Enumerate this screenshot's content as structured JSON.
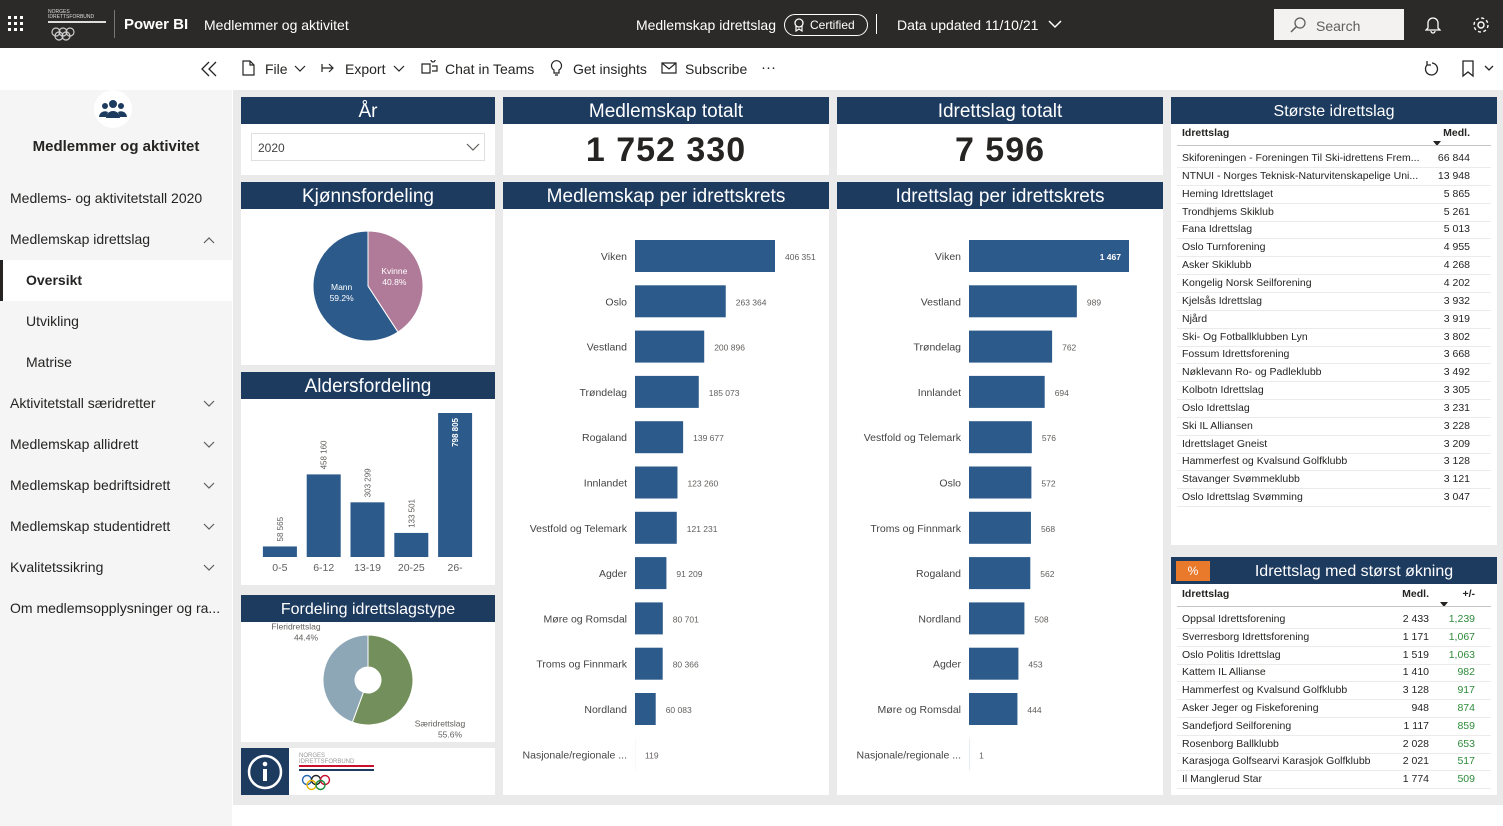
{
  "header": {
    "logo": "NORGES IDRETTSFORBUND",
    "app": "Power BI",
    "report": "Medlemmer og aktivitet",
    "dataset": "Medlemskap idrettslag",
    "badge": "Certified",
    "updated": "Data updated 11/10/21",
    "search": "Search"
  },
  "toolbar": {
    "items": [
      "File",
      "Export",
      "Chat in Teams",
      "Get insights",
      "Subscribe"
    ],
    "more": "···"
  },
  "nav": {
    "title": "Medlemmer og aktivitet",
    "sections": [
      {
        "label": "Medlems- og aktivitetstall 2020"
      },
      {
        "label": "Medlemskap idrettslag",
        "expanded": true,
        "pages": [
          "Oversikt",
          "Utvikling",
          "Matrise"
        ],
        "active": 0
      },
      {
        "label": "Aktivitetstall særidretter",
        "expanded": false
      },
      {
        "label": "Medlemskap allidrett",
        "expanded": false
      },
      {
        "label": "Medlemskap bedriftsidrett",
        "expanded": false
      },
      {
        "label": "Medlemskap studentidrett",
        "expanded": false
      },
      {
        "label": "Kvalitetssikring",
        "expanded": false
      },
      {
        "label": "Om medlemsopplysninger og ra..."
      }
    ]
  },
  "year_slicer": {
    "title": "År",
    "selected": "2020"
  },
  "kpis": [
    {
      "title": "Medlemskap totalt",
      "value": "1 752 330"
    },
    {
      "title": "Idrettslag totalt",
      "value": "7 596"
    }
  ],
  "chart_data": [
    {
      "type": "pie",
      "title": "Kjønnsfordeling",
      "categories": [
        "Mann",
        "Kvinne"
      ],
      "values": [
        59.2,
        40.8
      ],
      "value_labels": [
        "59.2%",
        "40.8%"
      ],
      "colors": [
        "#2c5a8a",
        "#b07b99"
      ]
    },
    {
      "type": "bar",
      "title": "Aldersfordeling",
      "categories": [
        "0-5",
        "6-12",
        "13-19",
        "20-25",
        "26-"
      ],
      "values": [
        58565,
        458160,
        303299,
        133501,
        798805
      ],
      "value_labels": [
        "58 565",
        "458 160",
        "303 299",
        "133 501",
        "798 805"
      ],
      "color": "#2c5a8a"
    },
    {
      "type": "donut",
      "title": "Fordeling idrettslagstype",
      "categories": [
        "Fleridrettslag",
        "Særidrettslag"
      ],
      "values": [
        44.4,
        55.6
      ],
      "value_labels": [
        "44.4%",
        "55.6%"
      ],
      "colors": [
        "#8ea7b6",
        "#73905c"
      ]
    },
    {
      "type": "hbar",
      "title": "Medlemskap per idrettskrets",
      "categories": [
        "Viken",
        "Oslo",
        "Vestland",
        "Trøndelag",
        "Rogaland",
        "Innlandet",
        "Vestfold og Telemark",
        "Agder",
        "Møre og Romsdal",
        "Troms og Finnmark",
        "Nordland",
        "Nasjonale/regionale ..."
      ],
      "values": [
        406351,
        263364,
        200896,
        185073,
        139677,
        123260,
        121231,
        91209,
        80701,
        80366,
        60083,
        119
      ],
      "value_labels": [
        "406 351",
        "263 364",
        "200 896",
        "185 073",
        "139 677",
        "123 260",
        "121 231",
        "91 209",
        "80 701",
        "80 366",
        "60 083",
        "119"
      ],
      "color": "#2c5a8a"
    },
    {
      "type": "hbar",
      "title": "Idrettslag per idrettskrets",
      "categories": [
        "Viken",
        "Vestland",
        "Trøndelag",
        "Innlandet",
        "Vestfold og Telemark",
        "Oslo",
        "Troms og Finnmark",
        "Rogaland",
        "Nordland",
        "Agder",
        "Møre og Romsdal",
        "Nasjonale/regionale ..."
      ],
      "values": [
        1467,
        989,
        762,
        694,
        576,
        572,
        568,
        562,
        508,
        453,
        444,
        1
      ],
      "value_labels": [
        "1 467",
        "989",
        "762",
        "694",
        "576",
        "572",
        "568",
        "562",
        "508",
        "453",
        "444",
        "1"
      ],
      "color": "#2c5a8a"
    }
  ],
  "largest_clubs": {
    "title": "Største idrettslag",
    "columns": [
      "Idrettslag",
      "Medl."
    ],
    "rows": [
      [
        "Skiforeningen - Foreningen Til Ski-idrettens Frem...",
        "66 844"
      ],
      [
        "NTNUI - Norges Teknisk-Naturvitenskapelige Uni...",
        "13 948"
      ],
      [
        "Heming Idrettslaget",
        "5 865"
      ],
      [
        "Trondhjems Skiklub",
        "5 261"
      ],
      [
        "Fana Idrettslag",
        "5 013"
      ],
      [
        "Oslo Turnforening",
        "4 955"
      ],
      [
        "Asker Skiklubb",
        "4 268"
      ],
      [
        "Kongelig Norsk Seilforening",
        "4 202"
      ],
      [
        "Kjelsås Idrettslag",
        "3 932"
      ],
      [
        "Njård",
        "3 919"
      ],
      [
        "Ski- Og Fotballklubben Lyn",
        "3 802"
      ],
      [
        "Fossum Idrettsforening",
        "3 668"
      ],
      [
        "Nøklevann Ro- og Padleklubb",
        "3 492"
      ],
      [
        "Kolbotn Idrettslag",
        "3 305"
      ],
      [
        "Oslo Idrettslag",
        "3 231"
      ],
      [
        "Ski IL Alliansen",
        "3 228"
      ],
      [
        "Idrettslaget Gneist",
        "3 209"
      ],
      [
        "Hammerfest og Kvalsund Golfklubb",
        "3 128"
      ],
      [
        "Stavanger Svømmeklubb",
        "3 121"
      ],
      [
        "Oslo Idrettslag Svømming",
        "3 047"
      ]
    ]
  },
  "growth": {
    "title": "Idrettslag med størst økning",
    "icon": "%",
    "columns": [
      "Idrettslag",
      "Medl.",
      "+/-"
    ],
    "rows": [
      [
        "Oppsal Idrettsforening",
        "2 433",
        "1,239"
      ],
      [
        "Sverresborg Idrettsforening",
        "1 171",
        "1,067"
      ],
      [
        "Oslo Politis Idrettslag",
        "1 519",
        "1,063"
      ],
      [
        "Kattem IL Allianse",
        "1 410",
        "982"
      ],
      [
        "Hammerfest og Kvalsund Golfklubb",
        "3 128",
        "917"
      ],
      [
        "Asker Jeger og Fiskeforening",
        "948",
        "874"
      ],
      [
        "Sandefjord Seilforening",
        "1 117",
        "859"
      ],
      [
        "Rosenborg Ballklubb",
        "2 028",
        "653"
      ],
      [
        "Karasjoga Golfsearvi Karasjok Golfklubb",
        "2 021",
        "517"
      ],
      [
        "Il Manglerud Star",
        "1 774",
        "509"
      ]
    ]
  },
  "footer_logo": "NORGES IDRETTSFORBUND"
}
